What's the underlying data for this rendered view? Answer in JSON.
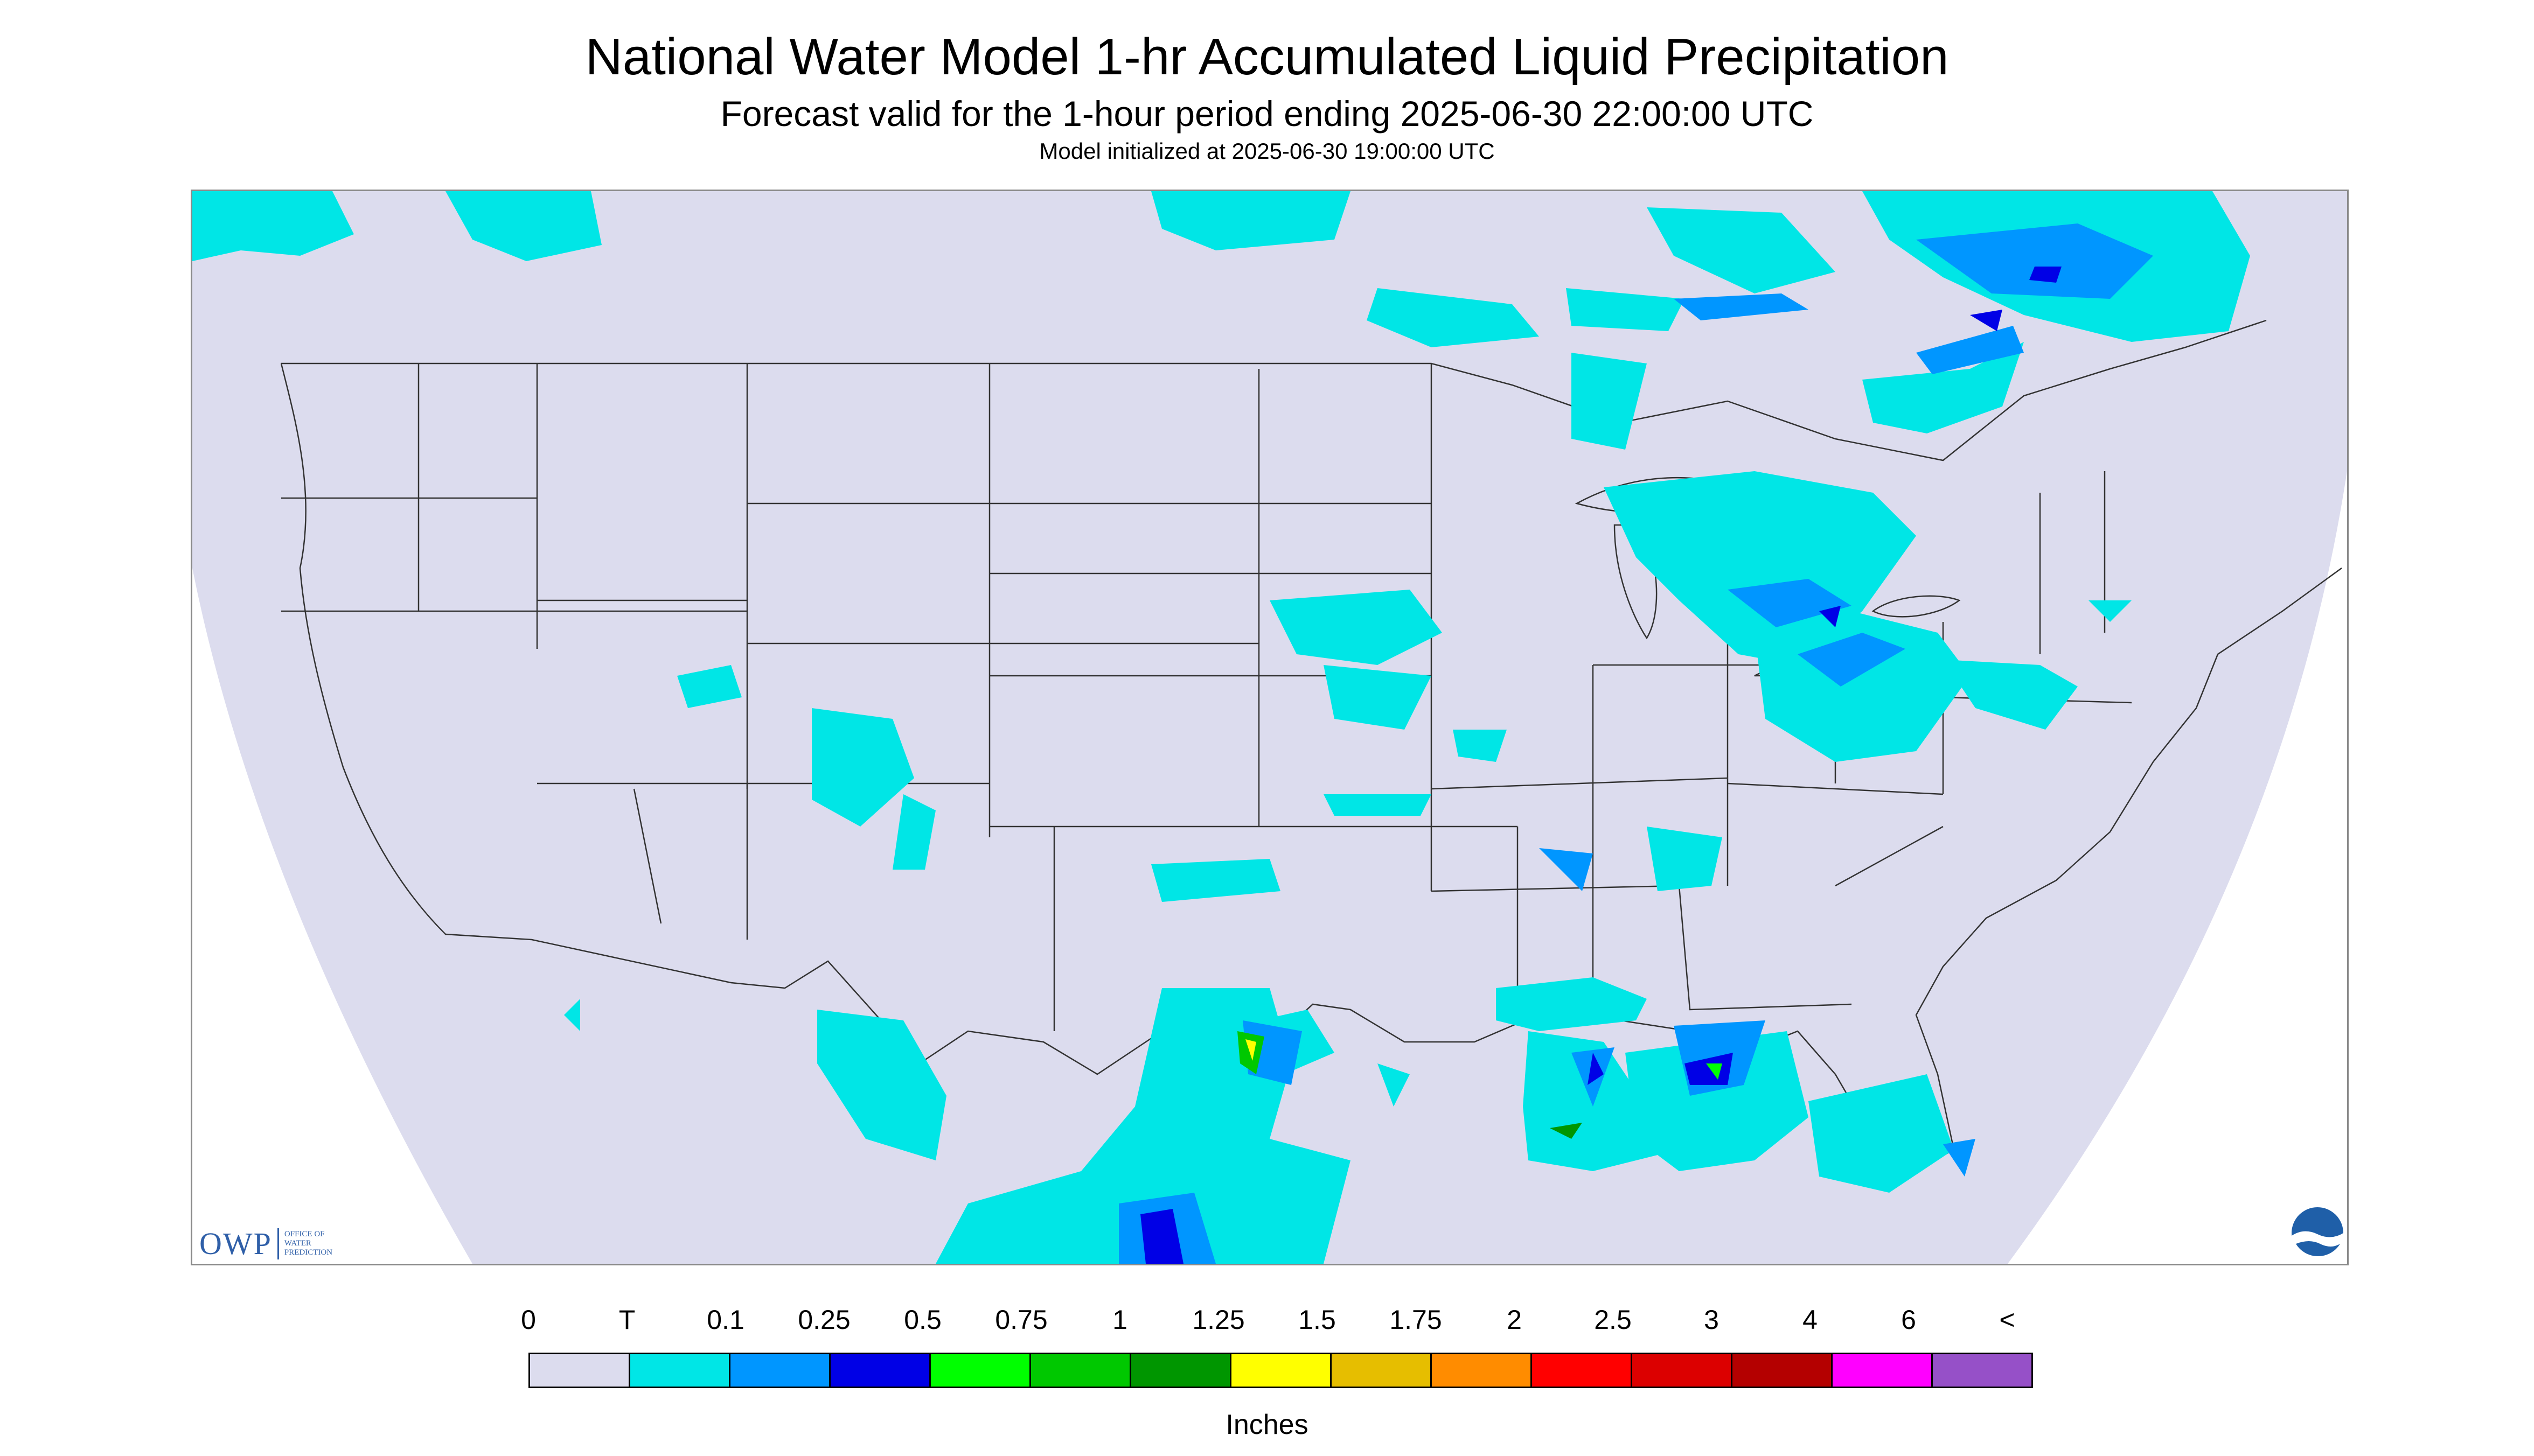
{
  "header": {
    "title": "National Water Model 1-hr Accumulated Liquid Precipitation",
    "subtitle": "Forecast valid for the 1-hour period ending 2025-06-30 22:00:00 UTC",
    "init": "Model initialized at 2025-06-30 19:00:00 UTC"
  },
  "logos": {
    "owp_mark": "OWP",
    "owp_text_1": "OFFICE OF",
    "owp_text_2": "WATER",
    "owp_text_3": "PREDICTION",
    "noaa_icon": "noaa-logo-icon"
  },
  "map": {
    "background_color": "#dcdcee",
    "outside_color": "#ffffff",
    "boundary_color": "#333333",
    "region": "Contiguous United States"
  },
  "legend": {
    "units": "Inches",
    "labels": [
      "0",
      "T",
      "0.1",
      "0.25",
      "0.5",
      "0.75",
      "1",
      "1.25",
      "1.5",
      "1.75",
      "2",
      "2.5",
      "3",
      "4",
      "6",
      "<"
    ],
    "colors": [
      "#dcdcee",
      "#00e6e6",
      "#0096ff",
      "#0000e6",
      "#00ff00",
      "#00c800",
      "#009600",
      "#ffff00",
      "#e6be00",
      "#ff8c00",
      "#ff0000",
      "#dc0000",
      "#b40000",
      "#ff00ff",
      "#9650c8"
    ]
  }
}
